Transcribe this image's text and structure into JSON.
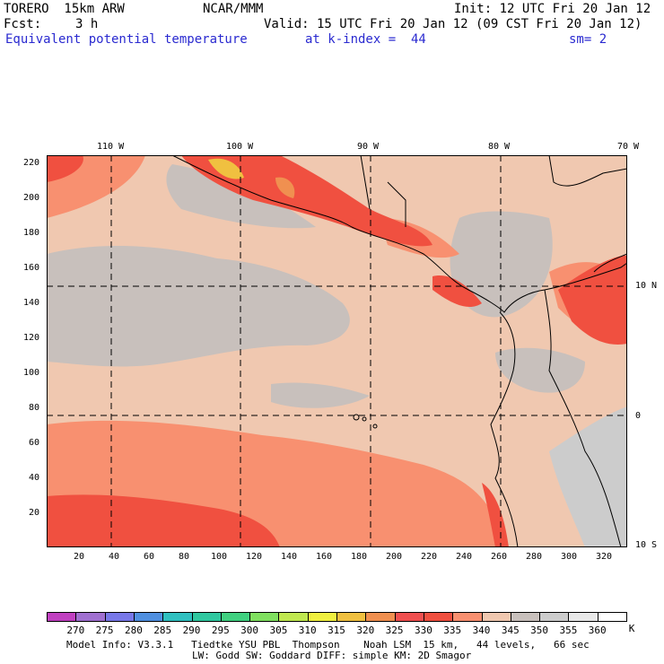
{
  "header": {
    "model": "TORERO  15km ARW",
    "org": "NCAR/MMM",
    "init": "Init: 12 UTC Fri 20 Jan 12",
    "fcst_label": "Fcst:",
    "fcst_value": "3 h",
    "valid": "Valid: 15 UTC Fri 20 Jan 12 (09 CST Fri 20 Jan 12)",
    "field": "Equivalent potential temperature",
    "level": "at k-index =  44",
    "smooth": "sm= 2"
  },
  "map": {
    "lon_labels": [
      "110 W",
      "100 W",
      "90 W",
      "80 W",
      "70 W"
    ],
    "lat_labels": [
      "10 N",
      "0",
      "10 S"
    ],
    "y_grid_labels": [
      "220",
      "200",
      "180",
      "160",
      "140",
      "120",
      "100",
      "80",
      "60",
      "40",
      "20"
    ],
    "x_grid_labels": [
      "20",
      "40",
      "60",
      "80",
      "100",
      "120",
      "140",
      "160",
      "180",
      "200",
      "220",
      "240",
      "260",
      "280",
      "300",
      "320"
    ]
  },
  "colorbar": {
    "labels": [
      "270",
      "275",
      "280",
      "285",
      "290",
      "295",
      "300",
      "305",
      "310",
      "315",
      "320",
      "325",
      "330",
      "335",
      "340",
      "345",
      "350",
      "355",
      "360"
    ],
    "unit": "K",
    "colors": [
      "#c040c0",
      "#a070d0",
      "#7878e8",
      "#5090e0",
      "#30c0c0",
      "#30c8a0",
      "#40d080",
      "#80e060",
      "#c0e850",
      "#f0f040",
      "#f0c040",
      "#f09050",
      "#f05050",
      "#f05040",
      "#f89070",
      "#f0c8b0",
      "#c8c0bc",
      "#cccccc",
      "#e8e8e8",
      "#ffffff"
    ]
  },
  "footer": {
    "line1": "Model Info: V3.3.1   Tiedtke YSU PBL  Thompson    Noah LSM  15 km,   44 levels,   66 sec",
    "line2": "LW: Godd SW: Goddard DIFF: simple KM: 2D Smagor"
  }
}
